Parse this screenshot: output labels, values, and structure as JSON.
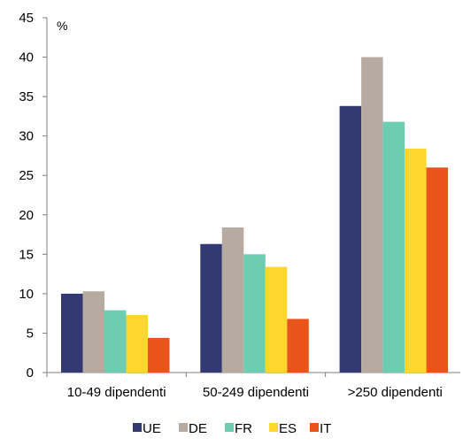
{
  "chart_data": {
    "type": "bar",
    "ylabel": "%",
    "ylim": [
      0,
      45
    ],
    "yticks": [
      0,
      5,
      10,
      15,
      20,
      25,
      30,
      35,
      40,
      45
    ],
    "categories": [
      "10-49 dipendenti",
      "50-249 dipendenti",
      ">250 dipendenti"
    ],
    "series": [
      {
        "name": "UE",
        "color": "#333a73",
        "values": [
          10,
          16.3,
          33.8
        ]
      },
      {
        "name": "DE",
        "color": "#b7aaa1",
        "values": [
          10.3,
          18.4,
          40
        ]
      },
      {
        "name": "FR",
        "color": "#6ccdb1",
        "values": [
          7.9,
          15,
          31.8
        ]
      },
      {
        "name": "ES",
        "color": "#ffd62e",
        "values": [
          7.3,
          13.4,
          28.4
        ]
      },
      {
        "name": "IT",
        "color": "#e9541b",
        "values": [
          4.4,
          6.8,
          26
        ]
      }
    ],
    "grid": false,
    "legend_position": "bottom"
  }
}
